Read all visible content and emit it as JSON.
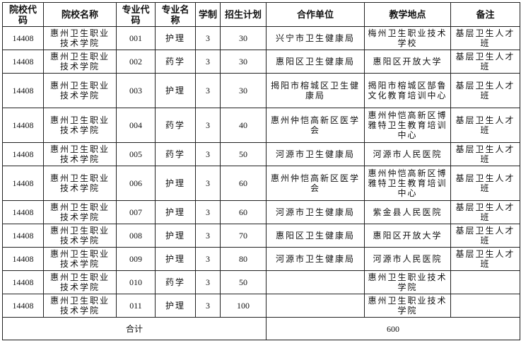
{
  "headers": [
    "院校代码",
    "院校名称",
    "专业代码",
    "专业名称",
    "学制",
    "招生计划",
    "合作单位",
    "教学地点",
    "备注"
  ],
  "rows": [
    {
      "school_code": "14408",
      "school_name": "惠州卫生职业技术学院",
      "major_code": "001",
      "major_name": "护理",
      "years": "3",
      "plan": "30",
      "partner": "兴宁市卫生健康局",
      "location": "梅州卫生职业技术学校",
      "note": "基层卫生人才班"
    },
    {
      "school_code": "14408",
      "school_name": "惠州卫生职业技术学院",
      "major_code": "002",
      "major_name": "药学",
      "years": "3",
      "plan": "30",
      "partner": "惠阳区卫生健康局",
      "location": "惠阳区开放大学",
      "note": "基层卫生人才班"
    },
    {
      "school_code": "14408",
      "school_name": "惠州卫生职业技术学院",
      "major_code": "003",
      "major_name": "护理",
      "years": "3",
      "plan": "30",
      "partner": "揭阳市榕城区卫生健康局",
      "location": "揭阳市榕城区郜鲁文化教育培训中心",
      "note": "基层卫生人才班"
    },
    {
      "school_code": "14408",
      "school_name": "惠州卫生职业技术学院",
      "major_code": "004",
      "major_name": "药学",
      "years": "3",
      "plan": "40",
      "partner": "惠州仲恺高新区医学会",
      "location": "惠州仲恺高新区博雅特卫生教育培训中心",
      "note": "基层卫生人才班"
    },
    {
      "school_code": "14408",
      "school_name": "惠州卫生职业技术学院",
      "major_code": "005",
      "major_name": "药学",
      "years": "3",
      "plan": "50",
      "partner": "河源市卫生健康局",
      "location": "河源市人民医院",
      "note": "基层卫生人才班"
    },
    {
      "school_code": "14408",
      "school_name": "惠州卫生职业技术学院",
      "major_code": "006",
      "major_name": "护理",
      "years": "3",
      "plan": "60",
      "partner": "惠州仲恺高新区医学会",
      "location": "惠州仲恺高新区博雅特卫生教育培训中心",
      "note": "基层卫生人才班"
    },
    {
      "school_code": "14408",
      "school_name": "惠州卫生职业技术学院",
      "major_code": "007",
      "major_name": "护理",
      "years": "3",
      "plan": "60",
      "partner": "河源市卫生健康局",
      "location": "紫金县人民医院",
      "note": "基层卫生人才班"
    },
    {
      "school_code": "14408",
      "school_name": "惠州卫生职业技术学院",
      "major_code": "008",
      "major_name": "护理",
      "years": "3",
      "plan": "70",
      "partner": "惠阳区卫生健康局",
      "location": "惠阳区开放大学",
      "note": "基层卫生人才班"
    },
    {
      "school_code": "14408",
      "school_name": "惠州卫生职业技术学院",
      "major_code": "009",
      "major_name": "护理",
      "years": "3",
      "plan": "80",
      "partner": "河源市卫生健康局",
      "location": "河源市人民医院",
      "note": "基层卫生人才班"
    },
    {
      "school_code": "14408",
      "school_name": "惠州卫生职业技术学院",
      "major_code": "010",
      "major_name": "药学",
      "years": "3",
      "plan": "50",
      "partner": "",
      "location": "惠州卫生职业技术学院",
      "note": ""
    },
    {
      "school_code": "14408",
      "school_name": "惠州卫生职业技术学院",
      "major_code": "011",
      "major_name": "护理",
      "years": "3",
      "plan": "100",
      "partner": "",
      "location": "惠州卫生职业技术学院",
      "note": ""
    }
  ],
  "footer": {
    "label": "合计",
    "total": "600"
  }
}
